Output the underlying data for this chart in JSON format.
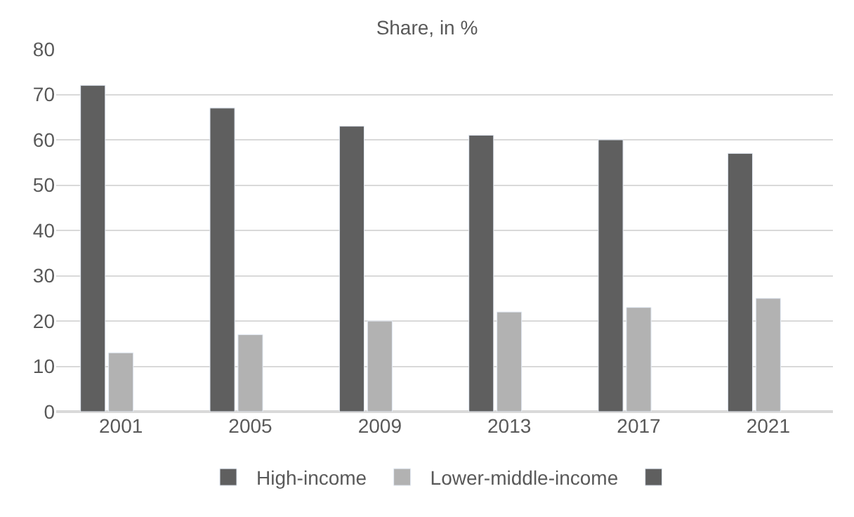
{
  "chart_data": {
    "type": "bar",
    "title": "Share, in %",
    "categories": [
      "2001",
      "2005",
      "2009",
      "2013",
      "2017",
      "2021"
    ],
    "series": [
      {
        "name": "High-income",
        "color": "#5f5f5f",
        "values": [
          72,
          67,
          63,
          61,
          60,
          57
        ]
      },
      {
        "name": "Lower-middle-income",
        "color": "#b2b2b2",
        "values": [
          13,
          17,
          20,
          22,
          23,
          25
        ]
      },
      {
        "color": "#5f5f5f",
        "values": [
          null,
          null,
          null,
          null,
          null,
          null
        ]
      }
    ],
    "ylim": [
      0,
      80
    ],
    "yticks": [
      0,
      10,
      20,
      30,
      40,
      50,
      60,
      70,
      80
    ],
    "grid": "y",
    "legend": "bottom"
  }
}
